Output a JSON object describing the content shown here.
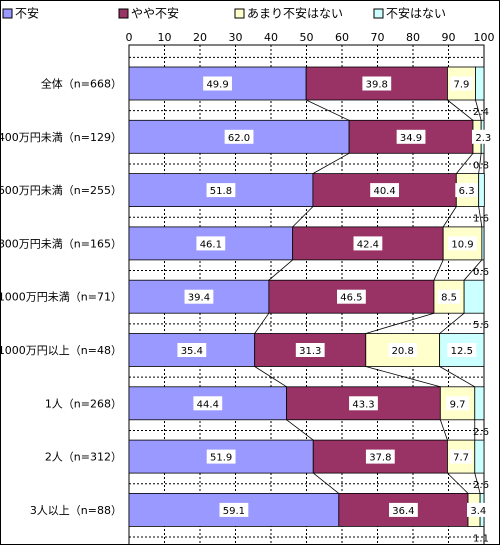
{
  "chart_data": {
    "type": "bar",
    "orientation": "horizontal",
    "stacked": true,
    "xlim": [
      0,
      100
    ],
    "xticks": [
      "0",
      "10",
      "20",
      "30",
      "40",
      "50",
      "60",
      "70",
      "80",
      "90",
      "100"
    ],
    "legend_position": "top",
    "grid": true,
    "connector_lines": true,
    "categories": [
      "全体（n=668）",
      "400万円未満（n=129）",
      "600万円未満（n=255）",
      "800万円未満（n=165）",
      "1000万円未満（n=71）",
      "1000万円以上（n=48）",
      "1人（n=268）",
      "2人（n=312）",
      "3人以上（n=88）"
    ],
    "series": [
      {
        "name": "不安",
        "color": "#9999ff",
        "values": [
          49.9,
          62.0,
          51.8,
          46.1,
          39.4,
          35.4,
          44.4,
          51.9,
          59.1
        ]
      },
      {
        "name": "やや不安",
        "color": "#993366",
        "values": [
          39.8,
          34.9,
          40.4,
          42.4,
          46.5,
          31.3,
          43.3,
          37.8,
          36.4
        ]
      },
      {
        "name": "あまり不安はない",
        "color": "#ffffcc",
        "values": [
          7.9,
          2.3,
          6.3,
          10.9,
          8.5,
          20.8,
          9.7,
          7.7,
          3.4
        ]
      },
      {
        "name": "不安はない",
        "color": "#ccffff",
        "values": [
          2.4,
          0.8,
          1.6,
          0.6,
          5.6,
          12.5,
          2.6,
          2.6,
          1.1
        ]
      }
    ],
    "data_labels": [
      [
        "49.9",
        "39.8",
        "7.9",
        "2.4"
      ],
      [
        "62.0",
        "34.9",
        "2.3",
        "0.8"
      ],
      [
        "51.8",
        "40.4",
        "6.3",
        "1.6"
      ],
      [
        "46.1",
        "42.4",
        "10.9",
        "0.6"
      ],
      [
        "39.4",
        "46.5",
        "8.5",
        "5.6"
      ],
      [
        "35.4",
        "31.3",
        "20.8",
        "12.5"
      ],
      [
        "44.4",
        "43.3",
        "9.7",
        "2.6"
      ],
      [
        "51.9",
        "37.8",
        "7.7",
        "2.6"
      ],
      [
        "59.1",
        "36.4",
        "3.4",
        "1.1"
      ]
    ]
  }
}
